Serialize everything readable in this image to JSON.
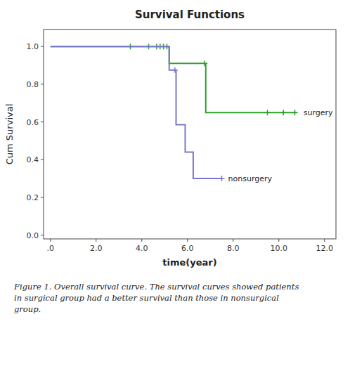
{
  "chart_data": {
    "type": "line",
    "title": "Survival Functions",
    "x_label": "time(year)",
    "y_label": "Cum Survival",
    "xlim": [
      -0.3,
      12.5
    ],
    "ylim": [
      -0.02,
      1.09
    ],
    "xticks": [
      {
        "value": 0.0,
        "label": ".0"
      },
      {
        "value": 2.0,
        "label": "2.0"
      },
      {
        "value": 4.0,
        "label": "4.0"
      },
      {
        "value": 6.0,
        "label": "6.0"
      },
      {
        "value": 8.0,
        "label": "8.0"
      },
      {
        "value": 10.0,
        "label": "10.0"
      },
      {
        "value": 12.0,
        "label": "12.0"
      }
    ],
    "yticks": [
      {
        "value": 0.0,
        "label": "0.0"
      },
      0.2,
      0.4,
      0.6,
      0.8,
      {
        "value": 1.0,
        "label": "1.0"
      }
    ],
    "grid": false,
    "series": [
      {
        "name": "surgery",
        "color": "#2ca02c",
        "x": [
          0.0,
          5.2,
          5.2,
          6.8,
          6.8,
          10.8
        ],
        "values": [
          1.0,
          1.0,
          0.91,
          0.91,
          0.65,
          0.65
        ],
        "censor_x": [
          3.5,
          4.3,
          4.65,
          4.8,
          4.95,
          5.1,
          6.75,
          9.5,
          10.2,
          10.7
        ],
        "censor_values": [
          1.0,
          1.0,
          1.0,
          1.0,
          1.0,
          1.0,
          0.91,
          0.65,
          0.65,
          0.65
        ]
      },
      {
        "name": "nonsurgery",
        "color": "#7777cc",
        "x": [
          0.0,
          5.2,
          5.2,
          5.5,
          5.5,
          5.9,
          5.9,
          6.25,
          6.25,
          7.5
        ],
        "values": [
          1.0,
          1.0,
          0.875,
          0.875,
          0.585,
          0.585,
          0.44,
          0.44,
          0.3,
          0.3
        ],
        "censor_x": [
          5.45,
          7.5
        ],
        "censor_values": [
          0.875,
          0.3
        ]
      }
    ],
    "caption": "Figure 1. Overall survival curve. The survival curves showed patients\nin surgical group had a better survival than those in nonsurgical\ngroup."
  }
}
